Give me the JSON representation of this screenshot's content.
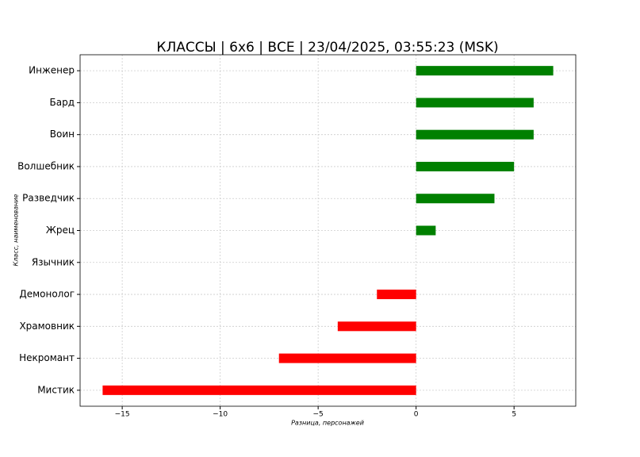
{
  "chart_data": {
    "type": "barh",
    "title": "КЛАССЫ | 6х6 | ВСЕ | 23/04/2025, 03:55:23 (MSK)",
    "x_label": "Разница, персонажей",
    "y_label": "Класс, наименование",
    "categories": [
      "Инженер",
      "Бард",
      "Воин",
      "Волшебник",
      "Разведчик",
      "Жрец",
      "Язычник",
      "Демонолог",
      "Храмовник",
      "Некромант",
      "Мистик"
    ],
    "values": [
      7,
      6,
      6,
      5,
      4,
      1,
      0,
      -2,
      -4,
      -7,
      -16
    ],
    "colors": [
      "#008000",
      "#008000",
      "#008000",
      "#008000",
      "#008000",
      "#008000",
      "#008000",
      "#ff0000",
      "#ff0000",
      "#ff0000",
      "#ff0000"
    ],
    "xlim": [
      -17.15,
      8.15
    ],
    "xticks": [
      {
        "value": -15,
        "label": "−15"
      },
      {
        "value": -10,
        "label": "−10"
      },
      {
        "value": -5,
        "label": "−5"
      },
      0,
      5
    ],
    "grid": true
  }
}
